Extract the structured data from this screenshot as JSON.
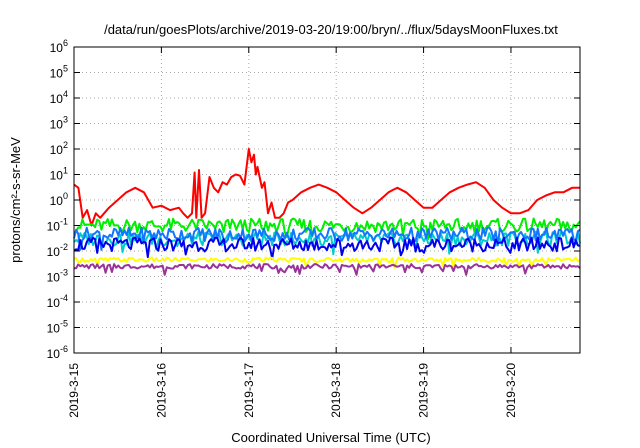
{
  "chart_data": {
    "type": "line",
    "title": "/data/run/goesPlots/archive/2019-03-20/19:00/bryn/../flux/5daysMoonFluxes.txt",
    "xlabel": "Coordinated Universal Time (UTC)",
    "ylabel": "protons/cm²-s-sr-MeV",
    "y_scale": "log",
    "ylim_exponents": [
      -6,
      6
    ],
    "y_tick_exponents": [
      -6,
      -5,
      -4,
      -3,
      -2,
      -1,
      0,
      1,
      2,
      3,
      4,
      5,
      6
    ],
    "y_tick_base": "10",
    "x_range_days": [
      "2019-3-15",
      "2019-3-20 19:00"
    ],
    "x_ticks": [
      "2019-3-15",
      "2019-3-16",
      "2019-3-17",
      "2019-3-18",
      "2019-3-19",
      "2019-3-20"
    ],
    "grid": true,
    "legend": "none",
    "series": [
      {
        "color": "#ff0000",
        "values": [
          {
            "t": 0.0,
            "y": 4.0
          },
          {
            "t": 0.05,
            "y": 3.0
          },
          {
            "t": 0.1,
            "y": 0.2
          },
          {
            "t": 0.15,
            "y": 0.4
          },
          {
            "t": 0.2,
            "y": 0.1
          },
          {
            "t": 0.25,
            "y": 0.3
          },
          {
            "t": 0.3,
            "y": 0.2
          },
          {
            "t": 0.4,
            "y": 0.5
          },
          {
            "t": 0.5,
            "y": 1.0
          },
          {
            "t": 0.6,
            "y": 2.0
          },
          {
            "t": 0.7,
            "y": 3.0
          },
          {
            "t": 0.8,
            "y": 2.0
          },
          {
            "t": 0.9,
            "y": 0.5
          },
          {
            "t": 1.0,
            "y": 0.6
          },
          {
            "t": 1.1,
            "y": 0.4
          },
          {
            "t": 1.2,
            "y": 0.5
          },
          {
            "t": 1.25,
            "y": 0.3
          },
          {
            "t": 1.3,
            "y": 0.2
          },
          {
            "t": 1.35,
            "y": 0.3
          },
          {
            "t": 1.38,
            "y": 12.0
          },
          {
            "t": 1.4,
            "y": 0.2
          },
          {
            "t": 1.43,
            "y": 15.0
          },
          {
            "t": 1.46,
            "y": 0.2
          },
          {
            "t": 1.5,
            "y": 0.3
          },
          {
            "t": 1.55,
            "y": 8.0
          },
          {
            "t": 1.6,
            "y": 3.0
          },
          {
            "t": 1.65,
            "y": 2.0
          },
          {
            "t": 1.7,
            "y": 5.0
          },
          {
            "t": 1.75,
            "y": 4.0
          },
          {
            "t": 1.8,
            "y": 8.0
          },
          {
            "t": 1.85,
            "y": 10.0
          },
          {
            "t": 1.9,
            "y": 9.0
          },
          {
            "t": 1.95,
            "y": 4.0
          },
          {
            "t": 2.0,
            "y": 100
          },
          {
            "t": 2.03,
            "y": 30.0
          },
          {
            "t": 2.06,
            "y": 60.0
          },
          {
            "t": 2.08,
            "y": 10.0
          },
          {
            "t": 2.1,
            "y": 20.0
          },
          {
            "t": 2.15,
            "y": 3.0
          },
          {
            "t": 2.18,
            "y": 5.0
          },
          {
            "t": 2.22,
            "y": 0.3
          },
          {
            "t": 2.26,
            "y": 0.8
          },
          {
            "t": 2.3,
            "y": 0.2
          },
          {
            "t": 2.35,
            "y": 0.2
          },
          {
            "t": 2.4,
            "y": 0.3
          },
          {
            "t": 2.45,
            "y": 0.8
          },
          {
            "t": 2.5,
            "y": 1.0
          },
          {
            "t": 2.6,
            "y": 2.0
          },
          {
            "t": 2.7,
            "y": 3.0
          },
          {
            "t": 2.8,
            "y": 4.0
          },
          {
            "t": 2.9,
            "y": 3.0
          },
          {
            "t": 3.0,
            "y": 2.0
          },
          {
            "t": 3.1,
            "y": 1.0
          },
          {
            "t": 3.2,
            "y": 0.5
          },
          {
            "t": 3.3,
            "y": 0.3
          },
          {
            "t": 3.4,
            "y": 0.5
          },
          {
            "t": 3.5,
            "y": 1.0
          },
          {
            "t": 3.6,
            "y": 2.0
          },
          {
            "t": 3.65,
            "y": 2.5
          },
          {
            "t": 3.7,
            "y": 3.0
          },
          {
            "t": 3.8,
            "y": 2.0
          },
          {
            "t": 3.9,
            "y": 1.0
          },
          {
            "t": 4.0,
            "y": 0.5
          },
          {
            "t": 4.1,
            "y": 0.5
          },
          {
            "t": 4.2,
            "y": 1.0
          },
          {
            "t": 4.3,
            "y": 2.0
          },
          {
            "t": 4.4,
            "y": 3.0
          },
          {
            "t": 4.5,
            "y": 4.0
          },
          {
            "t": 4.6,
            "y": 5.0
          },
          {
            "t": 4.7,
            "y": 3.0
          },
          {
            "t": 4.8,
            "y": 1.0
          },
          {
            "t": 4.9,
            "y": 0.5
          },
          {
            "t": 5.0,
            "y": 0.3
          },
          {
            "t": 5.1,
            "y": 0.3
          },
          {
            "t": 5.2,
            "y": 0.4
          },
          {
            "t": 5.3,
            "y": 1.0
          },
          {
            "t": 5.4,
            "y": 1.5
          },
          {
            "t": 5.5,
            "y": 2.0
          },
          {
            "t": 5.6,
            "y": 2.0
          },
          {
            "t": 5.7,
            "y": 3.0
          },
          {
            "t": 5.79,
            "y": 3.0
          }
        ]
      },
      {
        "color": "#00ee00",
        "values": [
          {
            "t": 0.0,
            "y": 0.1
          },
          {
            "t": 5.79,
            "y": 0.1
          }
        ]
      },
      {
        "color": "#00cccc",
        "values": [
          {
            "t": 0.0,
            "y": 0.03
          },
          {
            "t": 5.79,
            "y": 0.03
          }
        ]
      },
      {
        "color": "#1177ff",
        "values": [
          {
            "t": 0.0,
            "y": 0.045
          },
          {
            "t": 5.79,
            "y": 0.045
          }
        ]
      },
      {
        "color": "#0000ee",
        "values": [
          {
            "t": 0.0,
            "y": 0.018
          },
          {
            "t": 5.79,
            "y": 0.018
          }
        ]
      },
      {
        "color": "#ffff00",
        "values": [
          {
            "t": 0.0,
            "y": 0.0045
          },
          {
            "t": 5.79,
            "y": 0.0045
          }
        ]
      },
      {
        "color": "#993399",
        "values": [
          {
            "t": 0.0,
            "y": 0.0025
          },
          {
            "t": 5.79,
            "y": 0.0025
          }
        ]
      }
    ]
  }
}
